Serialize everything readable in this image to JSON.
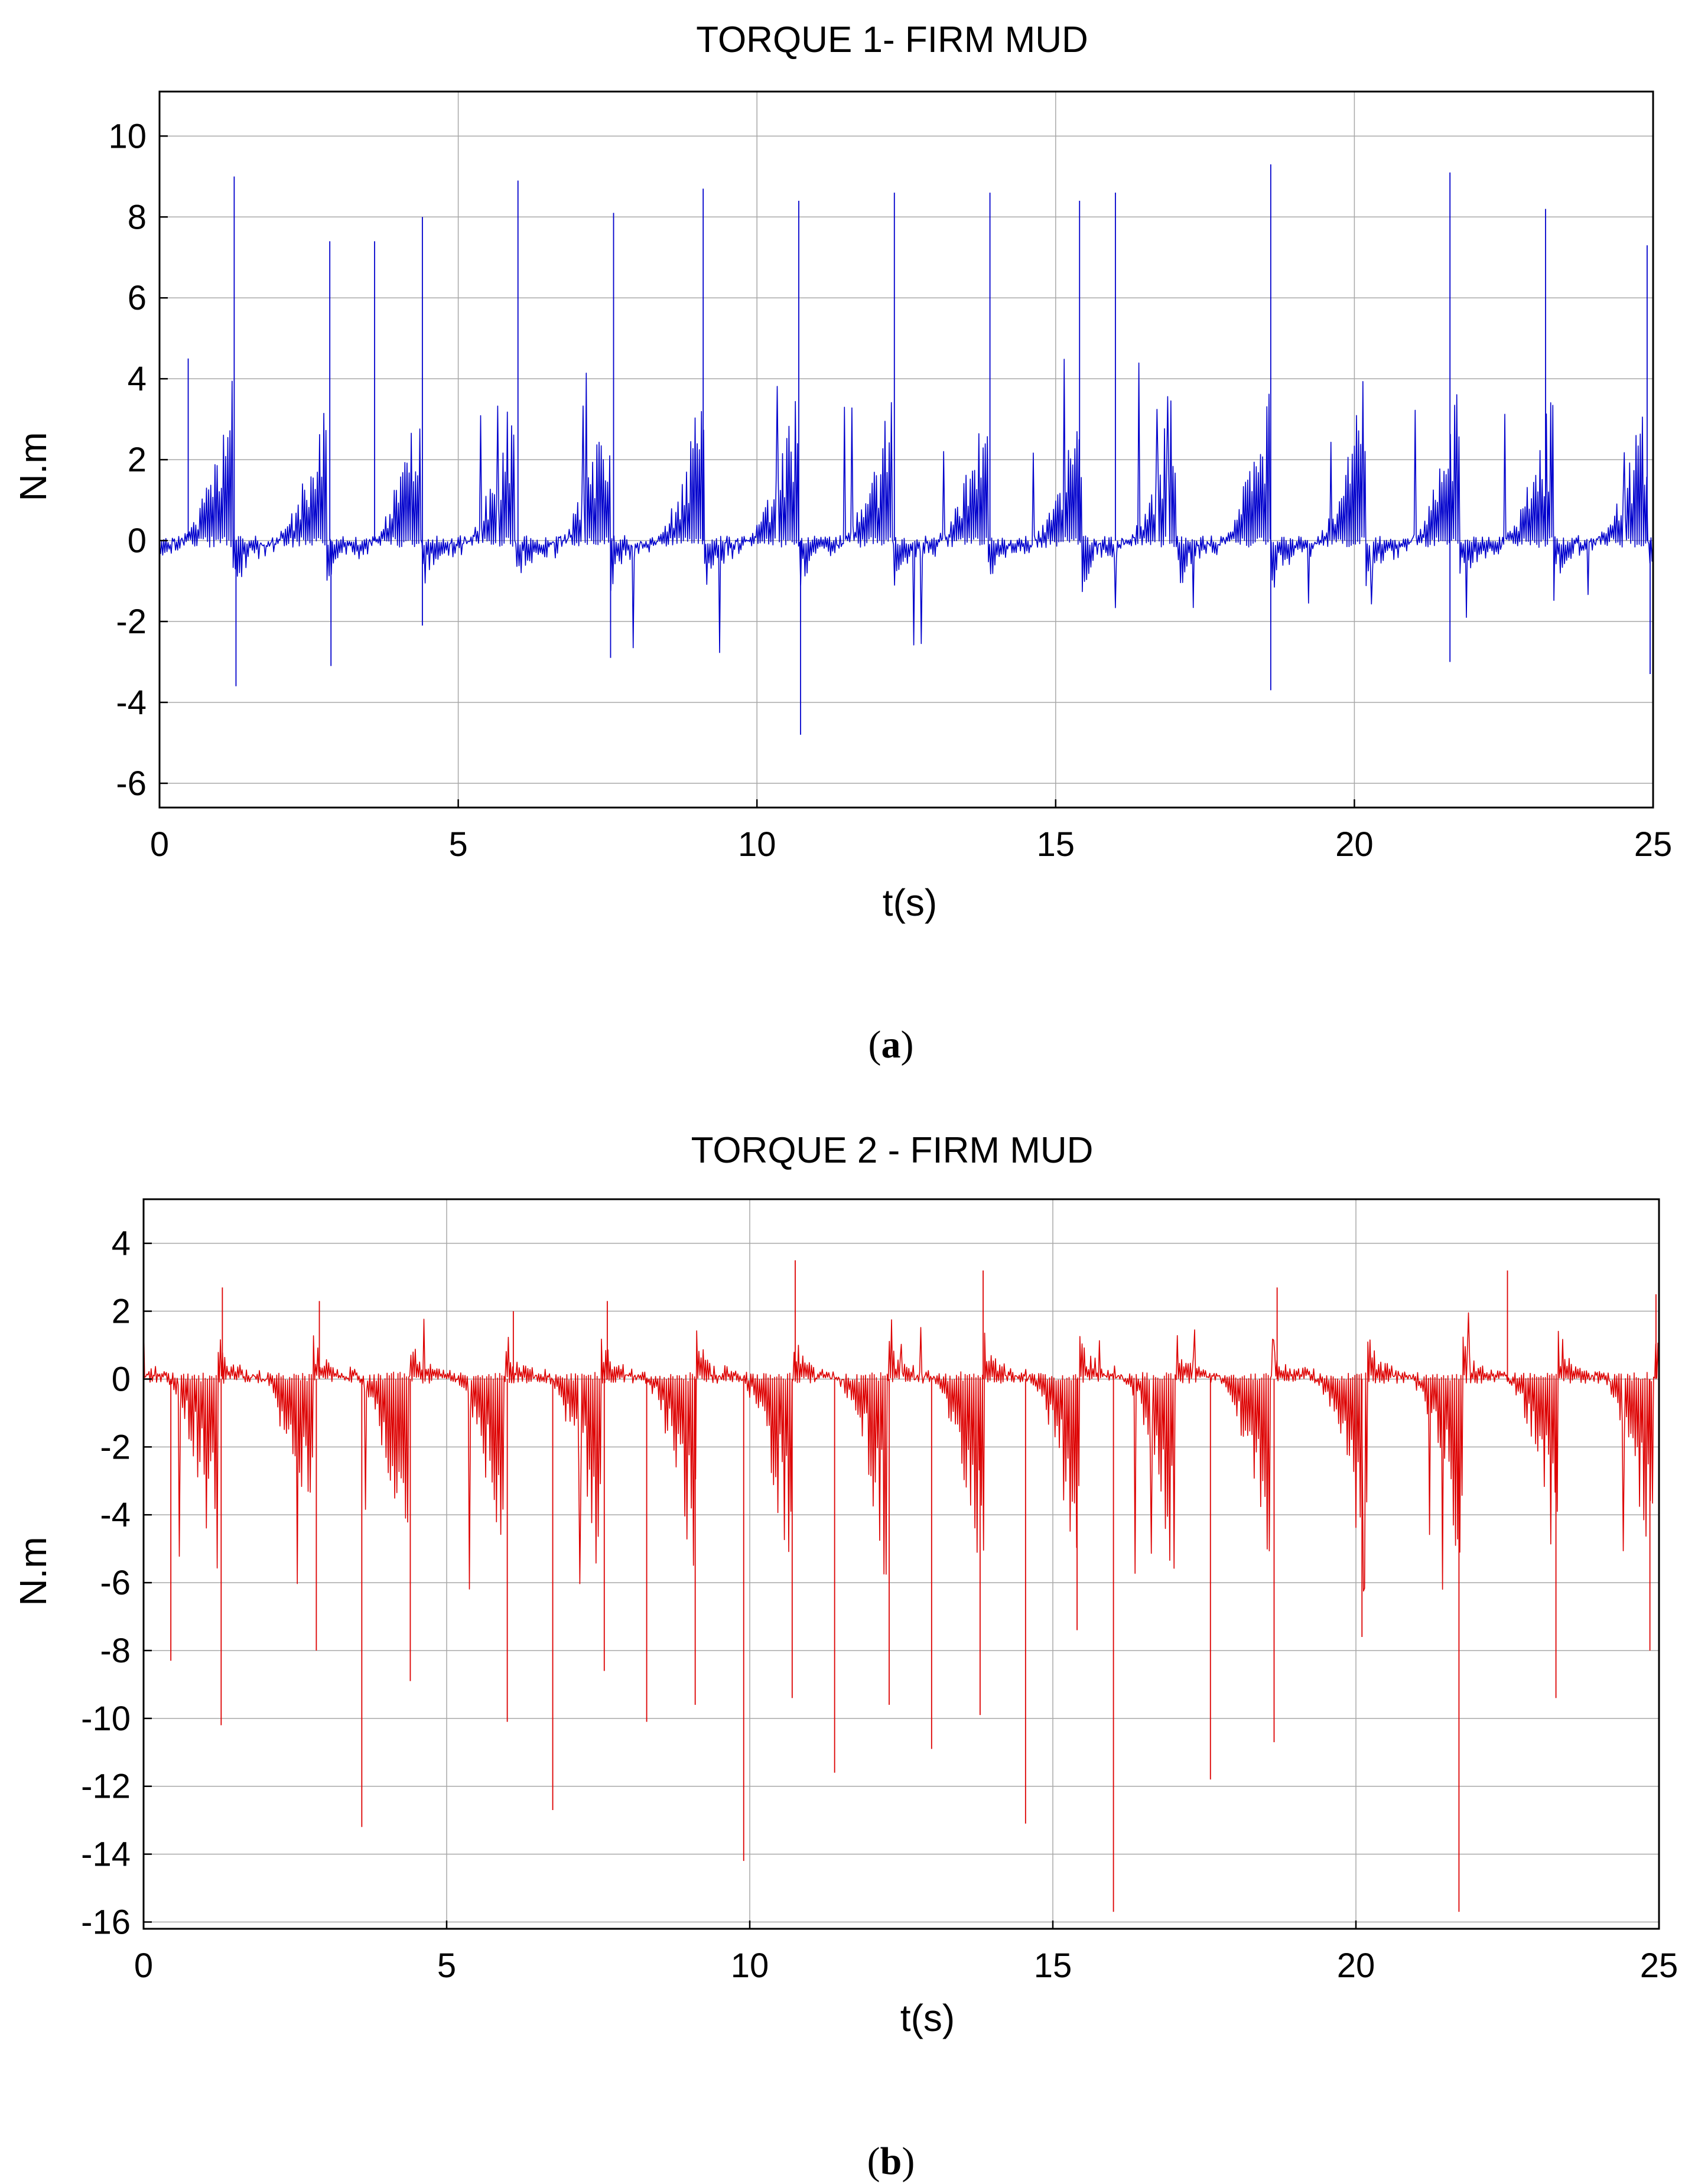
{
  "chart_data": [
    {
      "type": "line",
      "caption_letter": "a",
      "title": "TORQUE 1- FIRM MUD",
      "xlabel": "t(s)",
      "ylabel": "N.m",
      "xlim": [
        0,
        25
      ],
      "ylim": [
        -6.6,
        11.1
      ],
      "grid": true,
      "color": "#0000cc",
      "x_ticks": [
        0,
        5,
        10,
        15,
        20,
        25
      ],
      "y_ticks": [
        10,
        8,
        6,
        4,
        2,
        0,
        -2,
        -4,
        -6
      ],
      "cycle_period_s": 1.58,
      "sample_count": 1400,
      "peaks": [
        {
          "t": 0.48,
          "v": 4.5
        },
        {
          "t": 1.25,
          "v": 9.0
        },
        {
          "t": 1.28,
          "v": -3.6
        },
        {
          "t": 2.85,
          "v": 7.4
        },
        {
          "t": 2.87,
          "v": -3.1
        },
        {
          "t": 3.6,
          "v": 7.4
        },
        {
          "t": 4.4,
          "v": 8.0
        },
        {
          "t": 4.4,
          "v": -2.1
        },
        {
          "t": 6.0,
          "v": 8.9
        },
        {
          "t": 7.6,
          "v": 8.1
        },
        {
          "t": 7.55,
          "v": -2.9
        },
        {
          "t": 9.1,
          "v": 8.7
        },
        {
          "t": 10.7,
          "v": 8.4
        },
        {
          "t": 10.73,
          "v": -4.8
        },
        {
          "t": 12.3,
          "v": 8.6
        },
        {
          "t": 13.9,
          "v": 8.6
        },
        {
          "t": 15.4,
          "v": 8.4
        },
        {
          "t": 16.0,
          "v": 8.6
        },
        {
          "t": 18.6,
          "v": 9.3
        },
        {
          "t": 18.6,
          "v": -3.7
        },
        {
          "t": 21.6,
          "v": 9.1
        },
        {
          "t": 21.6,
          "v": -3.0
        },
        {
          "t": 23.2,
          "v": 8.2
        },
        {
          "t": 24.9,
          "v": 7.3
        },
        {
          "t": 24.95,
          "v": -3.3
        }
      ]
    },
    {
      "type": "line",
      "caption_letter": "b",
      "title": "TORQUE 2 - FIRM MUD",
      "xlabel": "t(s)",
      "ylabel": "N.m",
      "xlim": [
        0,
        25
      ],
      "ylim": [
        -16.2,
        5.3
      ],
      "grid": true,
      "color": "#dd0000",
      "x_ticks": [
        0,
        5,
        10,
        15,
        20,
        25
      ],
      "y_ticks": [
        4,
        2,
        0,
        -2,
        -4,
        -6,
        -8,
        -10,
        -12,
        -14,
        -16
      ],
      "cycle_period_s": 1.58,
      "sample_count": 1400,
      "peaks": [
        {
          "t": 0.45,
          "v": -8.3
        },
        {
          "t": 1.28,
          "v": -10.2
        },
        {
          "t": 1.3,
          "v": 2.7
        },
        {
          "t": 2.85,
          "v": -8.0
        },
        {
          "t": 2.9,
          "v": 2.3
        },
        {
          "t": 3.6,
          "v": -13.2
        },
        {
          "t": 4.4,
          "v": -8.9
        },
        {
          "t": 6.0,
          "v": -10.1
        },
        {
          "t": 6.1,
          "v": 2.0
        },
        {
          "t": 6.75,
          "v": -12.7
        },
        {
          "t": 7.6,
          "v": -8.6
        },
        {
          "t": 7.65,
          "v": 2.3
        },
        {
          "t": 8.3,
          "v": -10.1
        },
        {
          "t": 9.1,
          "v": -9.6
        },
        {
          "t": 9.9,
          "v": -14.2
        },
        {
          "t": 10.7,
          "v": -9.4
        },
        {
          "t": 10.75,
          "v": 3.5
        },
        {
          "t": 11.4,
          "v": -11.6
        },
        {
          "t": 12.3,
          "v": -9.6
        },
        {
          "t": 13.0,
          "v": -10.9
        },
        {
          "t": 13.8,
          "v": -9.9
        },
        {
          "t": 13.85,
          "v": 3.2
        },
        {
          "t": 14.55,
          "v": -13.1
        },
        {
          "t": 15.4,
          "v": -7.4
        },
        {
          "t": 16.0,
          "v": -15.7
        },
        {
          "t": 17.6,
          "v": -11.8
        },
        {
          "t": 18.65,
          "v": -10.7
        },
        {
          "t": 18.7,
          "v": 2.7
        },
        {
          "t": 20.1,
          "v": -7.6
        },
        {
          "t": 21.7,
          "v": -15.7
        },
        {
          "t": 22.5,
          "v": 3.2
        },
        {
          "t": 23.3,
          "v": -9.4
        },
        {
          "t": 24.85,
          "v": -8.0
        },
        {
          "t": 24.95,
          "v": 2.5
        }
      ]
    }
  ]
}
